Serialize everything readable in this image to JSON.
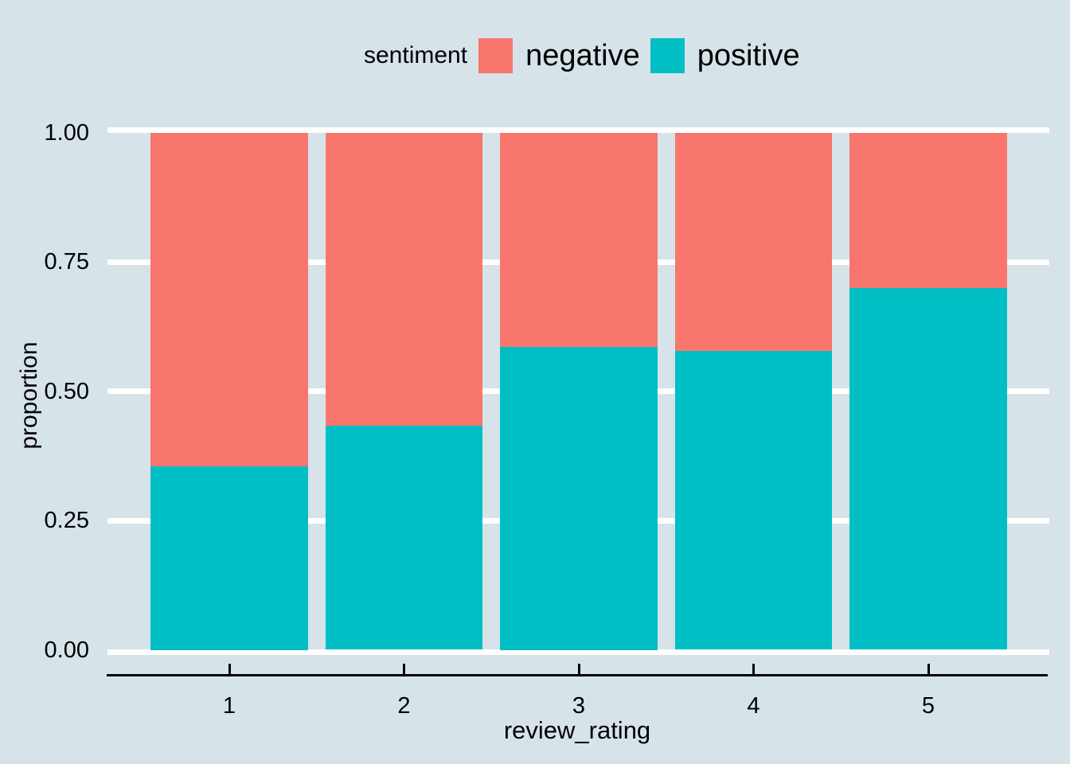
{
  "chart_data": {
    "type": "bar",
    "variant": "stacked-100-percent",
    "xlabel": "review_rating",
    "ylabel": "proportion",
    "categories": [
      "1",
      "2",
      "3",
      "4",
      "5"
    ],
    "series": [
      {
        "name": "negative",
        "color": "#F8766D",
        "stack_position": "top",
        "values": [
          0.645,
          0.567,
          0.415,
          0.422,
          0.301
        ]
      },
      {
        "name": "positive",
        "color": "#00BFC4",
        "stack_position": "bottom",
        "values": [
          0.355,
          0.433,
          0.585,
          0.578,
          0.699
        ]
      }
    ],
    "ylim": [
      0,
      1
    ],
    "yticks": [
      0,
      0.25,
      0.5,
      0.75,
      1.0
    ],
    "ytick_labels": [
      "0.00",
      "0.25",
      "0.50",
      "0.75",
      "1.00"
    ],
    "legend": {
      "title": "sentiment",
      "position": "top"
    },
    "grid": "horizontal-white-gridlines",
    "colors": {
      "background": "#d6e3e9",
      "gridline": "#ffffff",
      "axis_line": "#000000",
      "text": "#000000"
    }
  }
}
